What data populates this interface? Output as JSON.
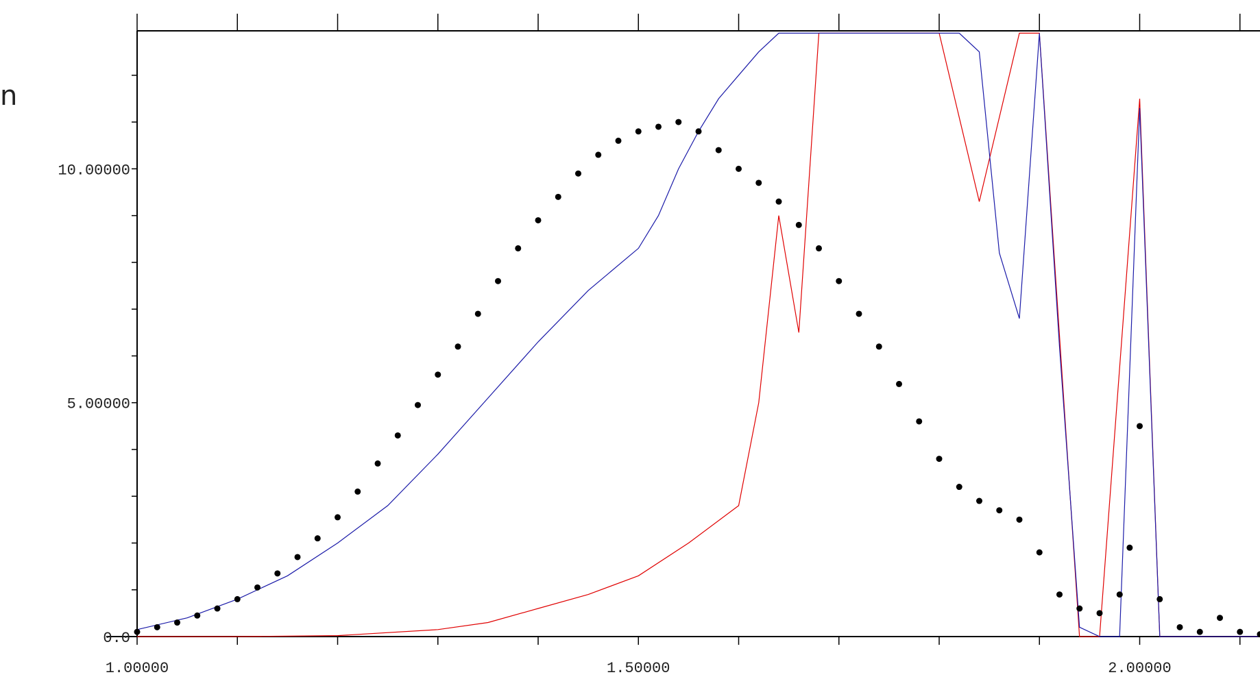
{
  "page_fragment": "n",
  "chart_data": {
    "type": "line",
    "title": "",
    "xlabel": "",
    "ylabel": "",
    "xlim": [
      1.0,
      2.12
    ],
    "ylim": [
      0.0,
      12.95
    ],
    "x_ticks": [
      {
        "value": 1.0,
        "label": "1.00000"
      },
      {
        "value": 1.5,
        "label": "1.50000"
      },
      {
        "value": 2.0,
        "label": "2.00000"
      }
    ],
    "y_ticks": [
      {
        "value": 0.0,
        "label": "0.0"
      },
      {
        "value": 5.0,
        "label": "5.00000"
      },
      {
        "value": 10.0,
        "label": "10.00000"
      }
    ],
    "series": [
      {
        "style": "markers",
        "color": "#000000",
        "x": [
          1.0,
          1.02,
          1.04,
          1.06,
          1.08,
          1.1,
          1.12,
          1.14,
          1.16,
          1.18,
          1.2,
          1.22,
          1.24,
          1.26,
          1.28,
          1.3,
          1.32,
          1.34,
          1.36,
          1.38,
          1.4,
          1.42,
          1.44,
          1.46,
          1.48,
          1.5,
          1.52,
          1.54,
          1.56,
          1.58,
          1.6,
          1.62,
          1.64,
          1.66,
          1.68,
          1.7,
          1.72,
          1.74,
          1.76,
          1.78,
          1.8,
          1.82,
          1.84,
          1.86,
          1.88,
          1.9,
          1.92,
          1.94,
          1.96,
          1.98,
          1.99,
          2.0,
          2.02,
          2.04,
          2.06,
          2.08,
          2.1,
          2.12
        ],
        "y": [
          0.1,
          0.2,
          0.3,
          0.45,
          0.6,
          0.8,
          1.05,
          1.35,
          1.7,
          2.1,
          2.55,
          3.1,
          3.7,
          4.3,
          4.95,
          5.6,
          6.2,
          6.9,
          7.6,
          8.3,
          8.9,
          9.4,
          9.9,
          10.3,
          10.6,
          10.8,
          10.9,
          11.0,
          10.8,
          10.4,
          10.0,
          9.7,
          9.3,
          8.8,
          8.3,
          7.6,
          6.9,
          6.2,
          5.4,
          4.6,
          3.8,
          3.2,
          2.9,
          2.7,
          2.5,
          1.8,
          0.9,
          0.6,
          0.5,
          0.9,
          1.9,
          4.5,
          0.8,
          0.2,
          0.1,
          0.4,
          0.1,
          0.05
        ]
      },
      {
        "style": "line",
        "color": "#1a1aa8",
        "x": [
          1.0,
          1.05,
          1.1,
          1.15,
          1.2,
          1.25,
          1.3,
          1.35,
          1.4,
          1.45,
          1.5,
          1.52,
          1.54,
          1.56,
          1.58,
          1.6,
          1.62,
          1.64,
          1.66,
          1.68,
          1.7,
          1.72,
          1.74,
          1.76,
          1.78,
          1.8,
          1.82,
          1.84,
          1.86,
          1.88,
          1.9,
          1.92,
          1.94,
          1.96,
          1.98,
          2.0,
          2.02,
          2.05,
          2.1,
          2.12
        ],
        "y": [
          0.15,
          0.4,
          0.8,
          1.3,
          2.0,
          2.8,
          3.9,
          5.1,
          6.3,
          7.4,
          8.3,
          9.0,
          10.0,
          10.8,
          11.5,
          12.0,
          12.5,
          12.9,
          12.9,
          12.9,
          12.9,
          12.9,
          12.9,
          12.9,
          12.9,
          12.9,
          12.9,
          12.5,
          8.2,
          6.8,
          12.9,
          6.2,
          0.2,
          0.0,
          0.0,
          11.3,
          0.0,
          0.0,
          0.0,
          0.0
        ]
      },
      {
        "style": "line",
        "color": "#e00000",
        "x": [
          1.0,
          1.1,
          1.2,
          1.3,
          1.35,
          1.4,
          1.45,
          1.5,
          1.55,
          1.6,
          1.62,
          1.64,
          1.66,
          1.68,
          1.7,
          1.72,
          1.74,
          1.76,
          1.78,
          1.8,
          1.84,
          1.88,
          1.9,
          1.94,
          1.96,
          2.0,
          2.02,
          2.12
        ],
        "y": [
          0.0,
          0.0,
          0.02,
          0.15,
          0.3,
          0.6,
          0.9,
          1.3,
          2.0,
          2.8,
          5.0,
          9.0,
          6.5,
          12.9,
          12.9,
          12.9,
          12.9,
          12.9,
          12.9,
          12.9,
          9.3,
          12.9,
          12.9,
          0.0,
          0.0,
          11.5,
          0.0,
          0.0
        ]
      }
    ]
  }
}
